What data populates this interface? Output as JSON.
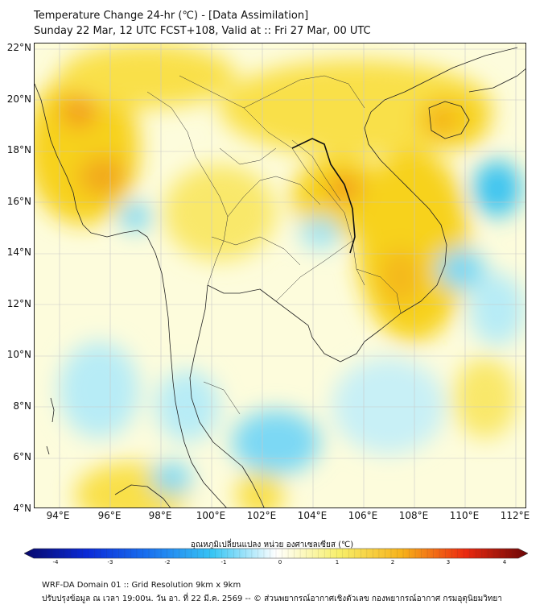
{
  "title_line1": "Temperature Change 24-hr (℃) - [Data Assimilation]",
  "title_line2": "Sunday 22 Mar, 12 UTC FCST+108, Valid at :: Fri 27 Mar, 00 UTC",
  "lat_labels": [
    "22°N",
    "20°N",
    "18°N",
    "16°N",
    "14°N",
    "12°N",
    "10°N",
    "8°N",
    "6°N",
    "4°N"
  ],
  "lon_labels": [
    "94°E",
    "96°E",
    "98°E",
    "100°E",
    "102°E",
    "104°E",
    "106°E",
    "108°E",
    "110°E",
    "112°E"
  ],
  "colorbar": {
    "title": "อุณหภูมิเปลี่ยนแปลง หน่วย องศาเซลเซียส (℃)",
    "min": -4,
    "max": 4,
    "ticks": [
      "-4",
      "-3",
      "-2",
      "-1",
      "0",
      "1",
      "2",
      "3",
      "4"
    ],
    "colors": [
      "#08086b",
      "#0a2ad8",
      "#1a74f0",
      "#38c6f4",
      "#ffffff",
      "#f7ef6a",
      "#f7b21a",
      "#ec2a10",
      "#6b0606"
    ]
  },
  "footer_line1": "WRF-DA Domain 01 :: Grid Resolution 9km x 9km",
  "footer_line2": "ปรับปรุงข้อมูล ณ เวลา 19:00น. วัน อา. ที่ 22 มี.ค. 2569 -- © ส่วนพยากรณ์อากาศเชิงตัวเลข กองพยากรณ์อากาศ กรมอุตุนิยมวิทยา",
  "map_colors": {
    "background": "#fdfcdc",
    "warm": "#f7d21a",
    "hot": "#f29a1a",
    "cool": "#9fe4f4",
    "cold": "#3cc4f0",
    "coast": "#222222",
    "grid": "#c8c8c8"
  }
}
